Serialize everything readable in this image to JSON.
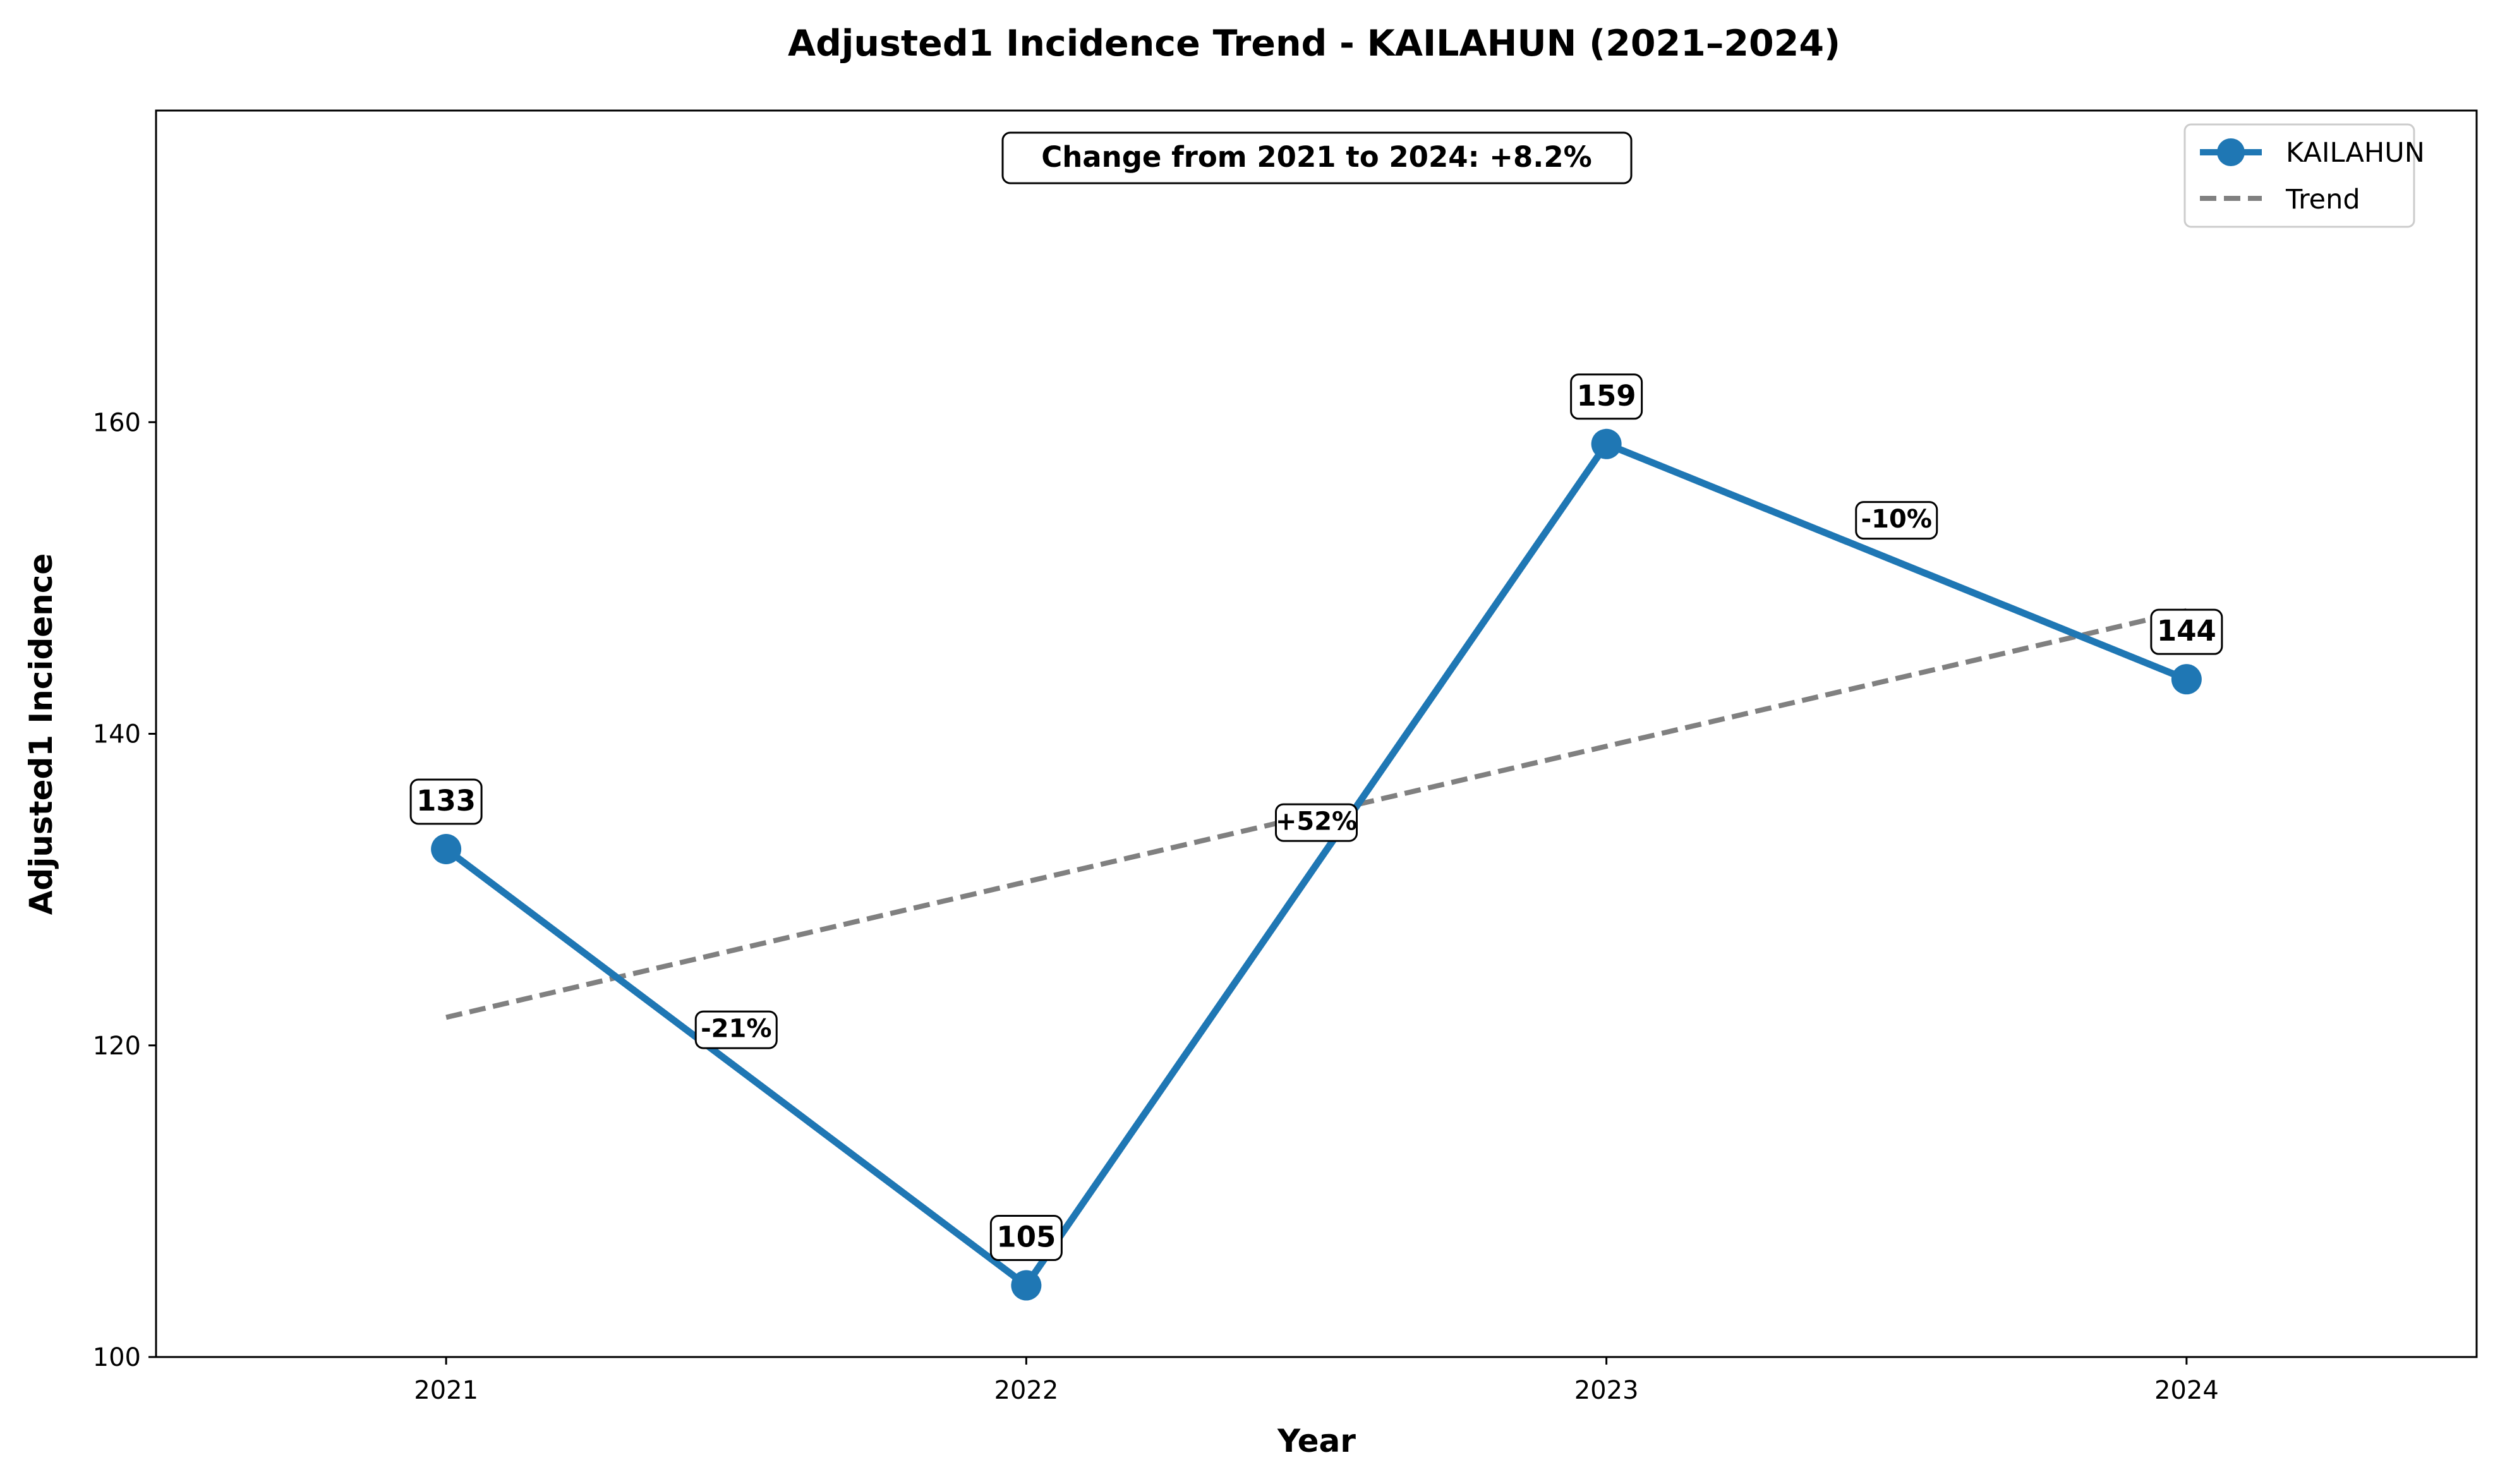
{
  "chart_data": {
    "type": "line",
    "title": "Adjusted1 Incidence Trend - KAILAHUN (2021–2024)",
    "xlabel": "Year",
    "ylabel": "Adjusted1 Incidence",
    "x": [
      "2021",
      "2022",
      "2023",
      "2024"
    ],
    "xlim": [
      2020.5,
      2024.5
    ],
    "ylim": [
      100,
      180
    ],
    "yticks": [
      100,
      120,
      140,
      160
    ],
    "grid": false,
    "legend_position": "top-right",
    "series": [
      {
        "name": "KAILAHUN",
        "values": [
          132.6,
          104.6,
          158.6,
          143.5
        ],
        "point_labels": [
          "133",
          "105",
          "159",
          "144"
        ],
        "color": "#1f77b4",
        "style": "solid-with-markers"
      },
      {
        "name": "Trend",
        "values": [
          121.8,
          130.5,
          139.2,
          147.9
        ],
        "color": "#808080",
        "style": "dashed"
      }
    ],
    "change_labels": [
      {
        "between": [
          "2021",
          "2022"
        ],
        "text": "-21%",
        "y": 121
      },
      {
        "between": [
          "2022",
          "2023"
        ],
        "text": "+52%",
        "y": 134.3
      },
      {
        "between": [
          "2023",
          "2024"
        ],
        "text": "-10%",
        "y": 153.7
      }
    ],
    "summary_annotation": "Change from 2021 to 2024: +8.2%"
  }
}
